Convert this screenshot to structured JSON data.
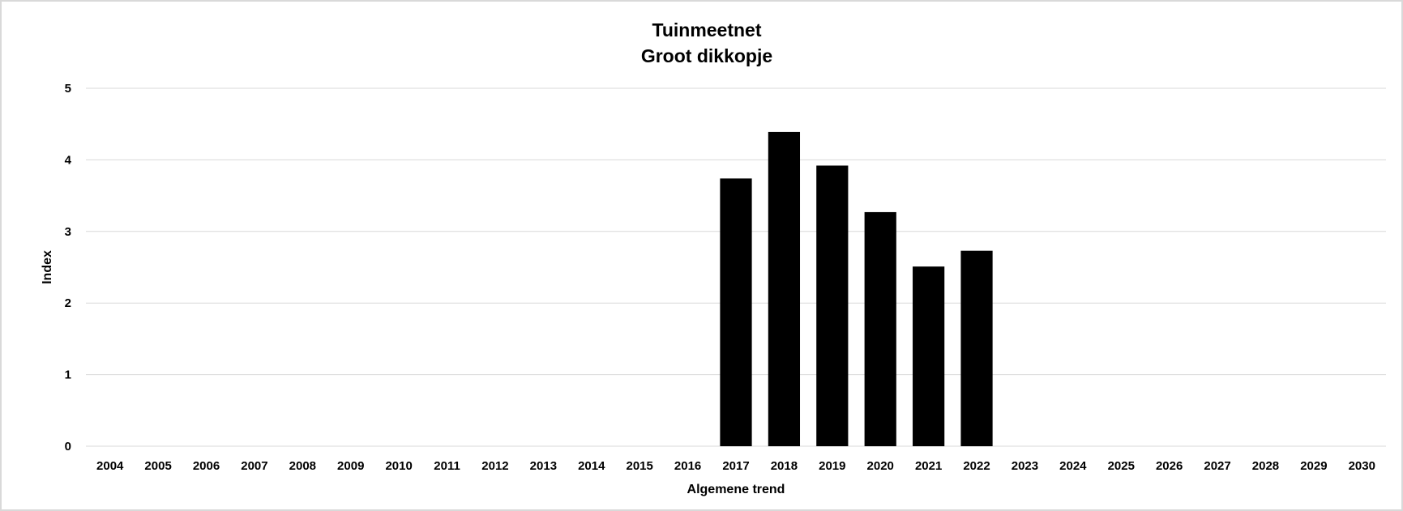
{
  "chart_data": {
    "type": "bar",
    "title": "Tuinmeetnet",
    "subtitle": "Groot dikkopje",
    "xlabel": "Algemene trend",
    "ylabel": "Index",
    "ylim": [
      0,
      5
    ],
    "yticks": [
      "0",
      "1",
      "2",
      "3",
      "4",
      "5"
    ],
    "grid": true,
    "categories": [
      "2004",
      "2005",
      "2006",
      "2007",
      "2008",
      "2009",
      "2010",
      "2011",
      "2012",
      "2013",
      "2014",
      "2015",
      "2016",
      "2017",
      "2018",
      "2019",
      "2020",
      "2021",
      "2022",
      "2023",
      "2024",
      "2025",
      "2026",
      "2027",
      "2028",
      "2029",
      "2030"
    ],
    "values": [
      null,
      null,
      null,
      null,
      null,
      null,
      null,
      null,
      null,
      null,
      null,
      null,
      null,
      3.74,
      4.39,
      3.92,
      3.27,
      2.51,
      2.73,
      null,
      null,
      null,
      null,
      null,
      null,
      null,
      null
    ],
    "colors": {
      "bar": "#000000",
      "grid": "#d9d9d9"
    }
  }
}
